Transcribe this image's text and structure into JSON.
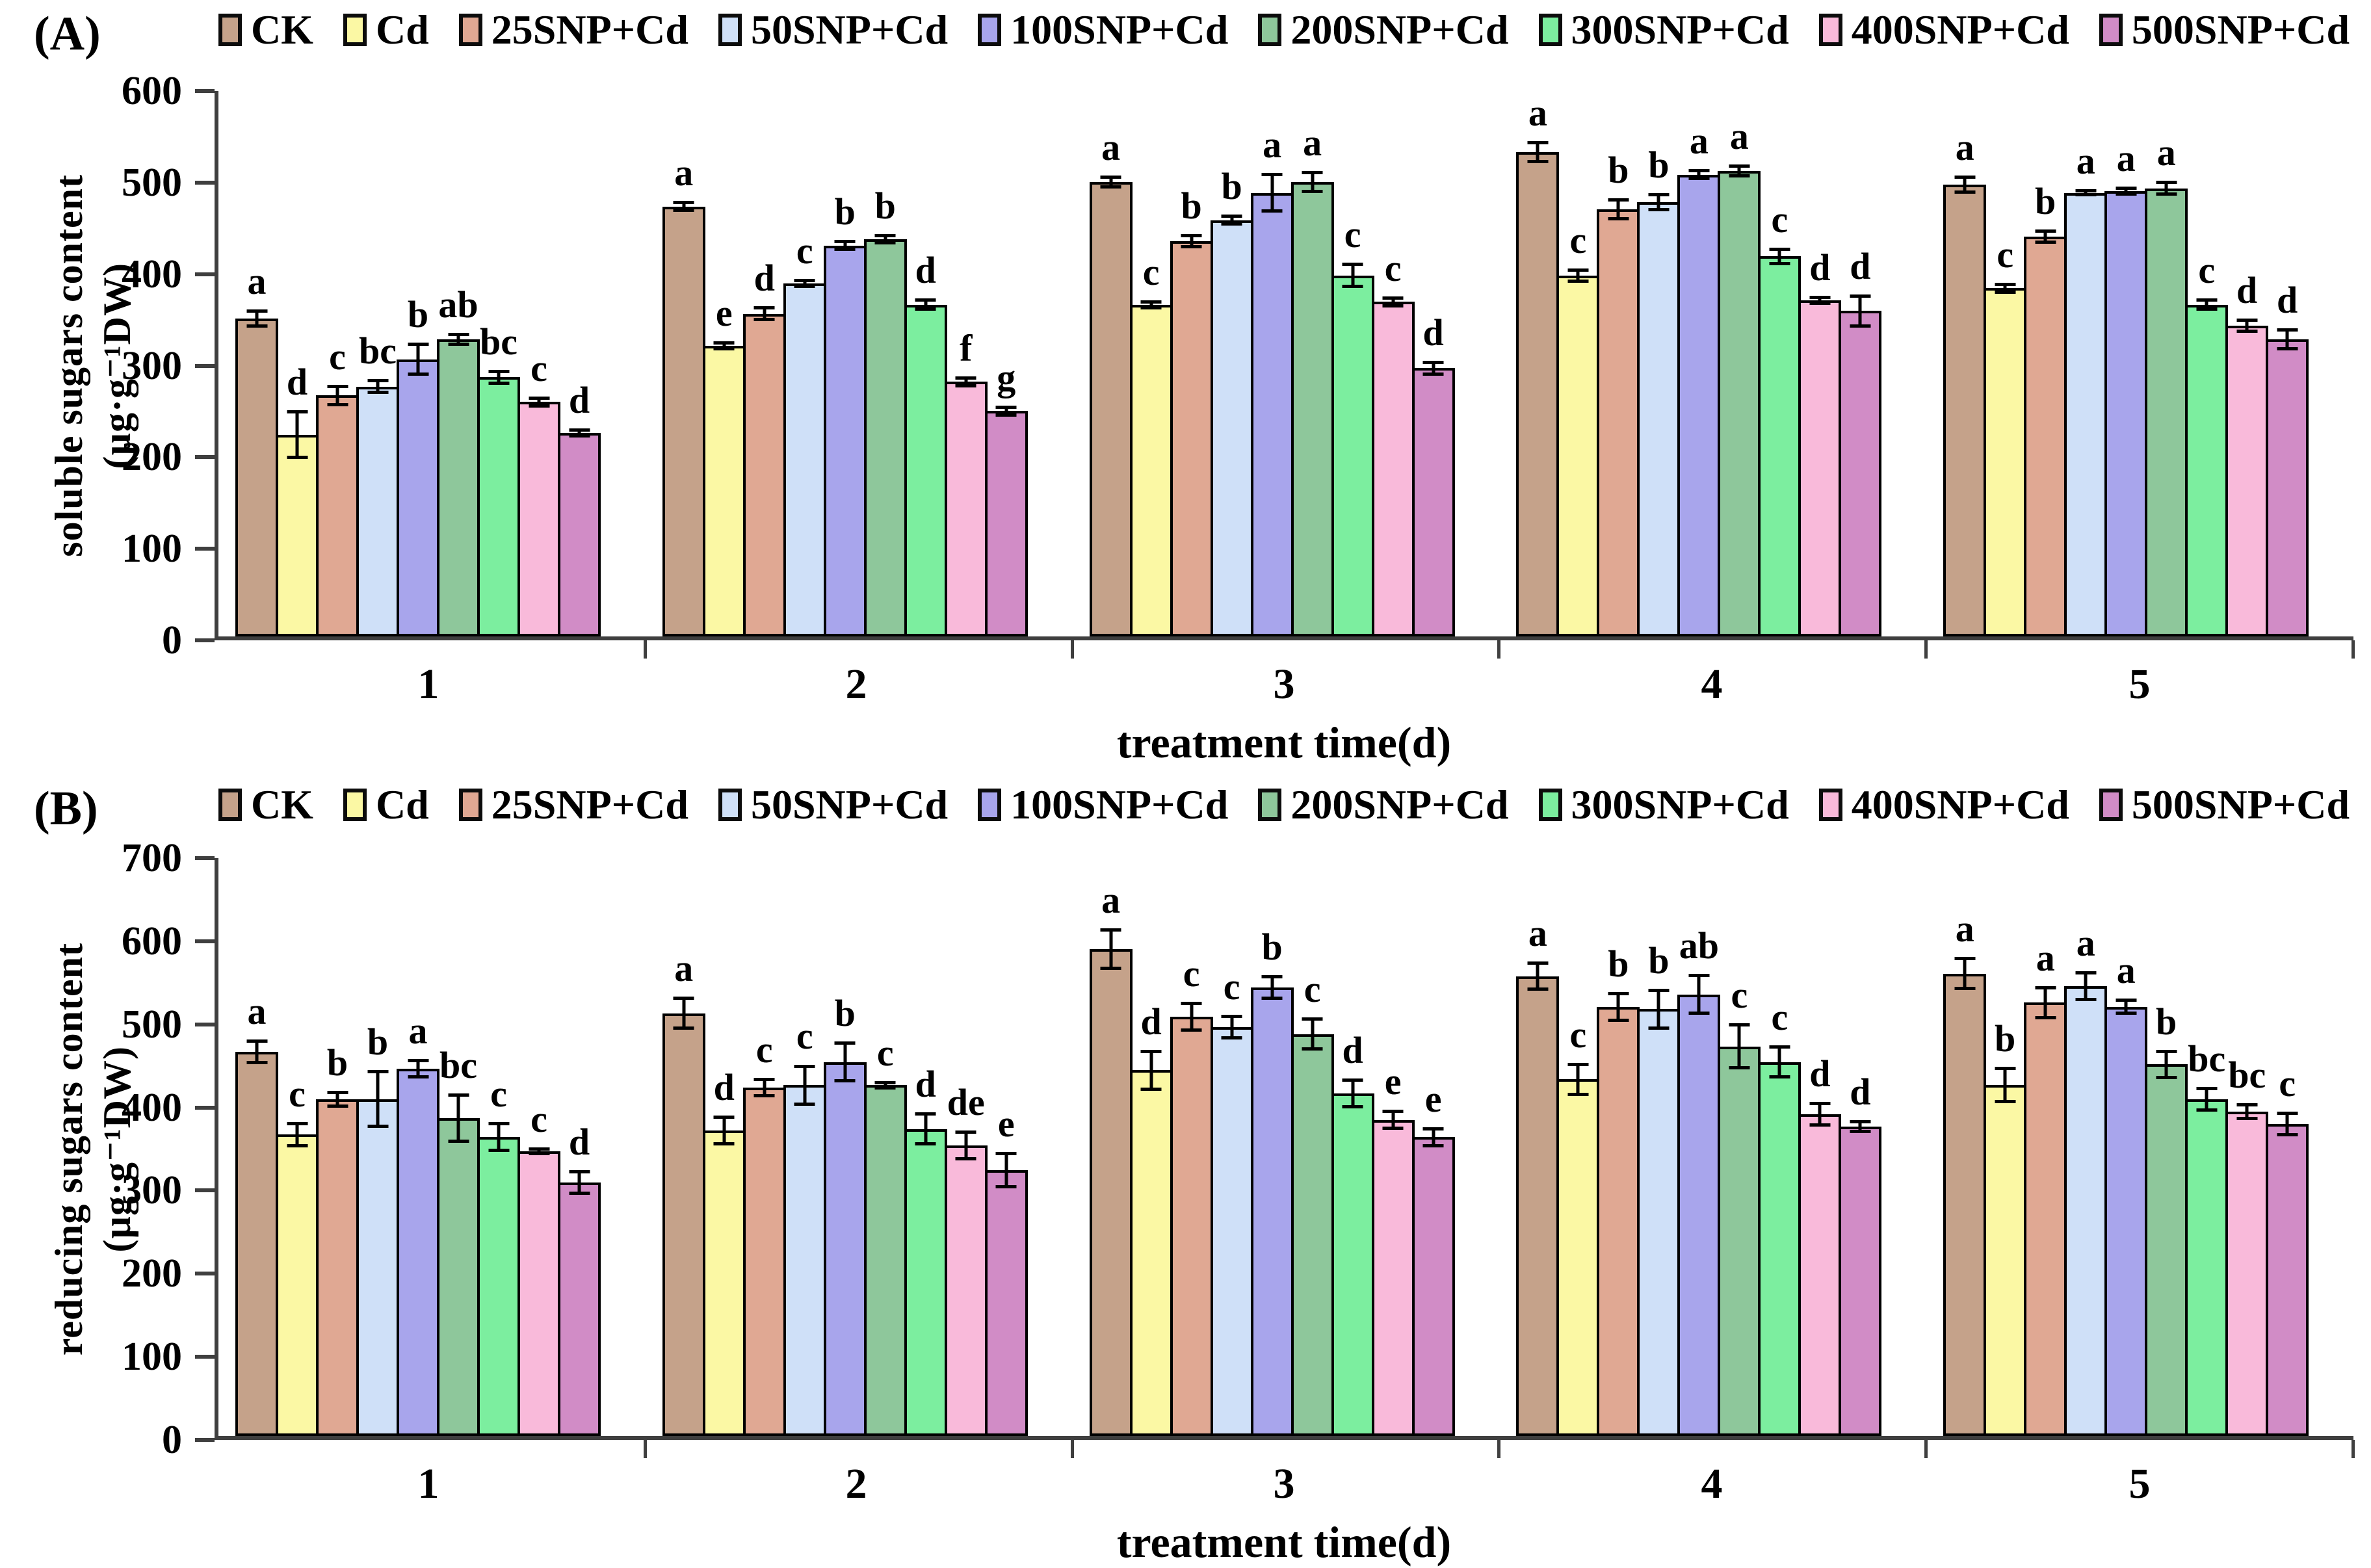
{
  "chart_data": [
    {
      "id": "A",
      "type": "bar",
      "panel_label": "(A)",
      "ylabel_line1": "soluble sugars content",
      "ylabel_line2": "(µg·g⁻¹DW)",
      "xlabel": "treatment time(d)",
      "ylim": [
        0,
        600
      ],
      "ytick_step": 100,
      "grid": "off",
      "legend_position": "top",
      "categories": [
        "1",
        "2",
        "3",
        "4",
        "5"
      ],
      "series": [
        {
          "name": "CK",
          "color": "#c5a28a",
          "values": [
            350,
            473,
            500,
            533,
            497
          ],
          "errors": [
            10,
            6,
            7,
            12,
            10
          ],
          "letters": [
            "a",
            "a",
            "a",
            "a",
            "a"
          ]
        },
        {
          "name": "Cd",
          "color": "#fbf8a4",
          "values": [
            222,
            320,
            365,
            397,
            383
          ],
          "errors": [
            27,
            5,
            5,
            8,
            6
          ],
          "letters": [
            "d",
            "e",
            "c",
            "c",
            "c"
          ]
        },
        {
          "name": "25SNP+Cd",
          "color": "#e0a893",
          "values": [
            265,
            355,
            435,
            470,
            440
          ],
          "errors": [
            12,
            8,
            8,
            12,
            8
          ],
          "letters": [
            "c",
            "d",
            "b",
            "b",
            "b"
          ]
        },
        {
          "name": "50SNP+Cd",
          "color": "#cfe0f8",
          "values": [
            275,
            388,
            458,
            478,
            488
          ],
          "errors": [
            8,
            5,
            6,
            10,
            4
          ],
          "letters": [
            "bc",
            "c",
            "b",
            "b",
            "a"
          ]
        },
        {
          "name": "100SNP+Cd",
          "color": "#a8a5ec",
          "values": [
            305,
            430,
            488,
            508,
            490
          ],
          "errors": [
            18,
            6,
            22,
            6,
            5
          ],
          "letters": [
            "b",
            "b",
            "a",
            "a",
            "a"
          ]
        },
        {
          "name": "200SNP+Cd",
          "color": "#8ec79b",
          "values": [
            327,
            437,
            500,
            512,
            493
          ],
          "errors": [
            7,
            6,
            12,
            7,
            8
          ],
          "letters": [
            "ab",
            "b",
            "a",
            "a",
            "a"
          ]
        },
        {
          "name": "300SNP+Cd",
          "color": "#7cee9f",
          "values": [
            285,
            365,
            397,
            418,
            365
          ],
          "errors": [
            8,
            7,
            14,
            10,
            7
          ],
          "letters": [
            "bc",
            "d",
            "c",
            "c",
            "c"
          ]
        },
        {
          "name": "400SNP+Cd",
          "color": "#f9bada",
          "values": [
            258,
            280,
            368,
            370,
            342
          ],
          "errors": [
            6,
            6,
            6,
            5,
            8
          ],
          "letters": [
            "c",
            "f",
            "c",
            "d",
            "d"
          ]
        },
        {
          "name": "500SNP+Cd",
          "color": "#d18cc6",
          "values": [
            224,
            248,
            295,
            358,
            327
          ],
          "errors": [
            5,
            6,
            8,
            18,
            12
          ],
          "letters": [
            "d",
            "g",
            "d",
            "d",
            "d"
          ]
        }
      ]
    },
    {
      "id": "B",
      "type": "bar",
      "panel_label": "(B)",
      "ylabel_line1": "reducing sugars content",
      "ylabel_line2": "(µg·g⁻¹DW)",
      "xlabel": "treatment time(d)",
      "ylim": [
        0,
        700
      ],
      "ytick_step": 100,
      "grid": "off",
      "legend_position": "top",
      "categories": [
        "1",
        "2",
        "3",
        "4",
        "5"
      ],
      "series": [
        {
          "name": "CK",
          "color": "#c5a28a",
          "values": [
            465,
            512,
            590,
            557,
            560
          ],
          "errors": [
            15,
            20,
            25,
            18,
            20
          ],
          "letters": [
            "a",
            "a",
            "a",
            "a",
            "a"
          ]
        },
        {
          "name": "Cd",
          "color": "#fbf8a4",
          "values": [
            365,
            370,
            443,
            432,
            425
          ],
          "errors": [
            15,
            18,
            25,
            20,
            22
          ],
          "letters": [
            "c",
            "d",
            "d",
            "c",
            "b"
          ]
        },
        {
          "name": "25SNP+Cd",
          "color": "#e0a893",
          "values": [
            408,
            422,
            508,
            520,
            525
          ],
          "errors": [
            10,
            12,
            18,
            18,
            20
          ],
          "letters": [
            "b",
            "c",
            "c",
            "b",
            "a"
          ]
        },
        {
          "name": "50SNP+Cd",
          "color": "#cfe0f8",
          "values": [
            408,
            425,
            495,
            517,
            545
          ],
          "errors": [
            35,
            25,
            15,
            25,
            18
          ],
          "letters": [
            "b",
            "c",
            "c",
            "b",
            "a"
          ]
        },
        {
          "name": "100SNP+Cd",
          "color": "#a8a5ec",
          "values": [
            445,
            453,
            543,
            535,
            520
          ],
          "errors": [
            12,
            25,
            15,
            25,
            10
          ],
          "letters": [
            "a",
            "b",
            "b",
            "ab",
            "a"
          ]
        },
        {
          "name": "200SNP+Cd",
          "color": "#8ec79b",
          "values": [
            385,
            425,
            487,
            472,
            450
          ],
          "errors": [
            30,
            5,
            20,
            28,
            18
          ],
          "letters": [
            "bc",
            "c",
            "c",
            "c",
            "b"
          ]
        },
        {
          "name": "300SNP+Cd",
          "color": "#7cee9f",
          "values": [
            362,
            372,
            415,
            453,
            408
          ],
          "errors": [
            18,
            20,
            18,
            20,
            15
          ],
          "letters": [
            "c",
            "d",
            "d",
            "c",
            "bc"
          ]
        },
        {
          "name": "400SNP+Cd",
          "color": "#f9bada",
          "values": [
            345,
            352,
            383,
            390,
            393
          ],
          "errors": [
            5,
            18,
            12,
            15,
            10
          ],
          "letters": [
            "c",
            "de",
            "e",
            "d",
            "bc"
          ]
        },
        {
          "name": "500SNP+Cd",
          "color": "#d18cc6",
          "values": [
            307,
            322,
            362,
            375,
            378
          ],
          "errors": [
            15,
            22,
            12,
            8,
            15
          ],
          "letters": [
            "d",
            "e",
            "e",
            "d",
            "c"
          ]
        }
      ]
    }
  ],
  "style": {
    "axis_color": "#3f3f3f",
    "bar_border_color": "#000000",
    "error_bar_color": "#000000"
  }
}
